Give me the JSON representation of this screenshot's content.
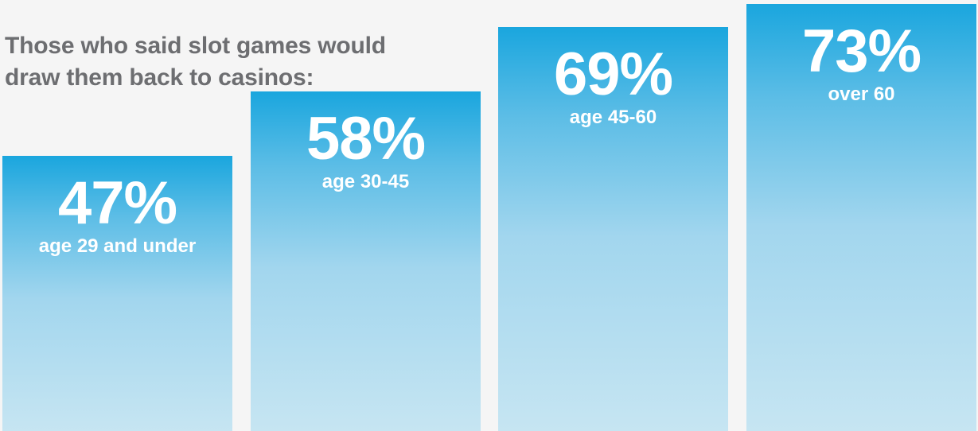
{
  "chart_data": {
    "type": "bar",
    "title_lines": [
      "Those who said slot games would",
      "draw them back to casinos:"
    ],
    "categories": [
      "age 29 and under",
      "age 30-45",
      "age 45-60",
      "over 60"
    ],
    "values": [
      47,
      58,
      69,
      73
    ],
    "value_labels": [
      "47%",
      "58%",
      "69%",
      "73%"
    ],
    "unit": "%",
    "grid": false,
    "legend": "none",
    "colors": {
      "bar_top": "#1aa6de",
      "bar_bottom": "#c6e5f2",
      "text": "#ffffff",
      "title": "#6d6e71",
      "background": "#f5f5f5"
    }
  }
}
